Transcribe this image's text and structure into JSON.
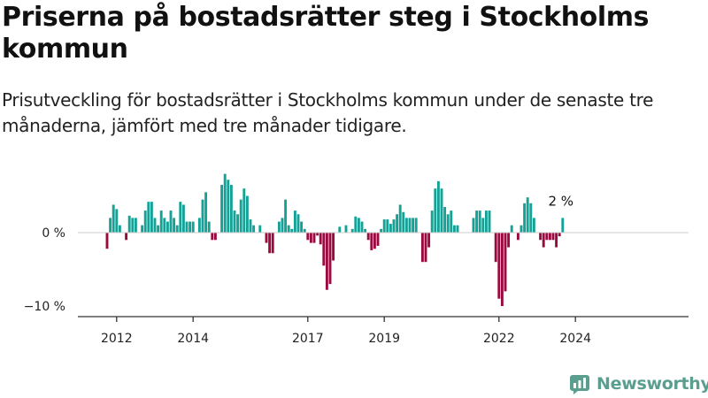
{
  "title": "Priserna på bostadsrätter steg i Stockholms kommun",
  "subtitle": "Prisutveckling för bostadsrätter i Stockholms kommun under de senaste tre månaderna, jämfört med tre månader tidigare.",
  "logo": {
    "text": "Newsworthy",
    "icon": "newsworthy-chart-icon"
  },
  "colors": {
    "positive": "#16a196",
    "negative": "#9b0a3f",
    "axis": "#333333",
    "zero_line": "#cccccc"
  },
  "chart_data": {
    "type": "bar",
    "title": "",
    "xlabel": "",
    "ylabel": "",
    "ylim": [
      -11,
      9
    ],
    "x_start": "2011-10",
    "frequency": "monthly",
    "x_ticks": [
      "2012",
      "2014",
      "2017",
      "2019",
      "2022",
      "2024"
    ],
    "y_ticks": [
      {
        "value": 0,
        "label": "0 %"
      },
      {
        "value": -10,
        "label": "−10 %"
      }
    ],
    "grid": false,
    "annotation": {
      "label": "2 %",
      "at": "last"
    },
    "values": [
      -2.2,
      2,
      3.8,
      3.2,
      1,
      0,
      -1,
      2.3,
      2,
      2,
      0,
      1,
      3,
      4.2,
      4.2,
      2,
      1,
      3,
      2,
      1.5,
      3,
      2,
      1,
      4.2,
      3.8,
      1.5,
      1.5,
      1.5,
      0,
      2,
      4.5,
      5.5,
      1.5,
      -1,
      -1,
      0,
      6.5,
      8,
      7.2,
      6.5,
      3,
      2.5,
      4.5,
      6,
      5,
      1.8,
      1,
      0,
      1,
      0,
      -1.4,
      -2.8,
      -2.8,
      0,
      1.5,
      2,
      4.5,
      1,
      0.5,
      3,
      2.5,
      1.5,
      0.5,
      -1,
      -1.4,
      -1.4,
      -0.4,
      -1.6,
      -4.5,
      -7.8,
      -7,
      -3.8,
      0,
      0.8,
      0,
      1,
      0,
      0.5,
      2.2,
      2,
      1.5,
      0.5,
      -1,
      -2.4,
      -2.2,
      -1.8,
      0.5,
      1.8,
      1.8,
      1.2,
      1.8,
      2.5,
      3.8,
      2.8,
      2,
      2,
      2,
      2,
      0,
      -4,
      -4,
      -2,
      3,
      6,
      7,
      6,
      3.5,
      2.5,
      3,
      1,
      1,
      0,
      0,
      0,
      0,
      2,
      3,
      3,
      2,
      3,
      3,
      0,
      -4,
      -9,
      -10,
      -8,
      -2,
      1,
      0,
      -1,
      1,
      4,
      4.8,
      4,
      2,
      0,
      -1,
      -2,
      -1,
      -1,
      -1,
      -2,
      -0.5,
      2
    ]
  }
}
